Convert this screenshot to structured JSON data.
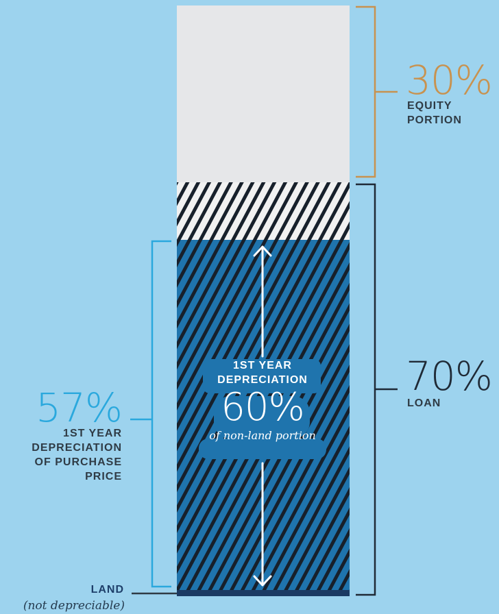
{
  "colors": {
    "background": "#9dd3ee",
    "equity_segment": "#e6e7e9",
    "depreciable_segment": "#1f74ad",
    "land_segment": "#1b3a63",
    "equity_accent": "#c8924f",
    "loan_accent": "#1f2a36",
    "depreciation_accent": "#2aa8dd",
    "dark_text": "#2f3b45",
    "land_text": "#1e3f6a",
    "white": "#ffffff"
  },
  "equity": {
    "percent": "30%",
    "caption": "EQUITY\nPORTION"
  },
  "loan": {
    "percent": "70%",
    "caption": "LOAN"
  },
  "depreciation": {
    "percent": "57%",
    "caption": "1ST YEAR\nDEPRECIATION\nOF PURCHASE\nPRICE"
  },
  "center": {
    "title": "1ST YEAR\nDEPRECIATION",
    "percent": "60%",
    "subtitle": "of non-land portion"
  },
  "land": {
    "label": "LAND",
    "sublabel": "(not depreciable)"
  }
}
